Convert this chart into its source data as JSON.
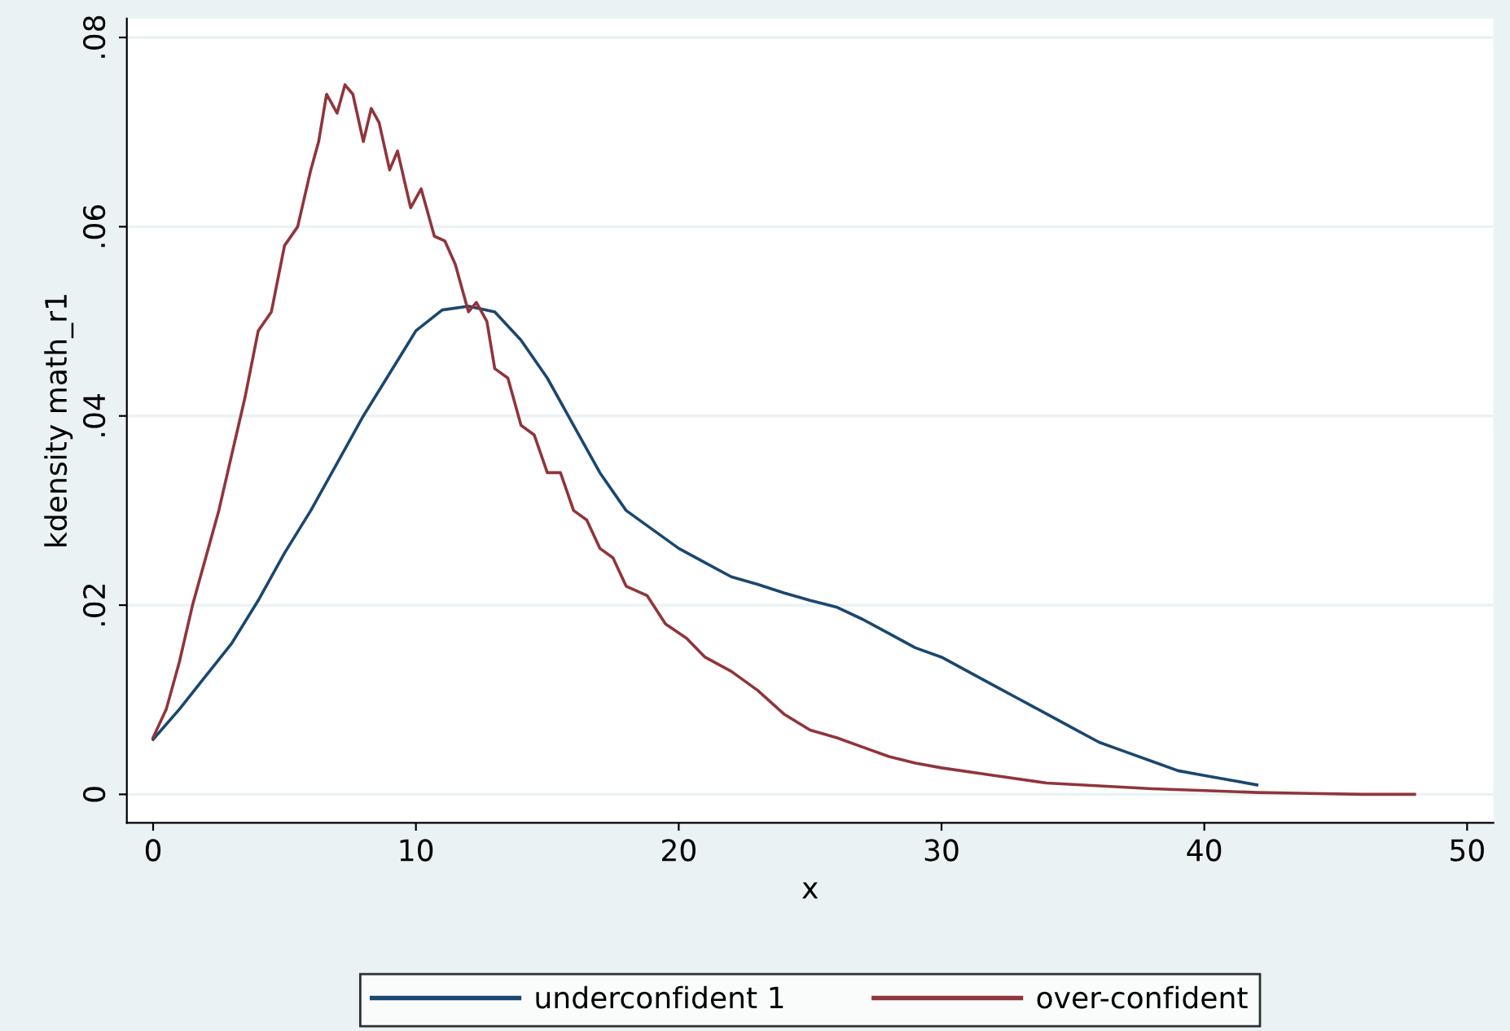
{
  "chart_data": {
    "type": "line",
    "xlabel": "x",
    "ylabel": "kdensity math_r1",
    "xlim": [
      -1,
      51
    ],
    "ylim": [
      -0.003,
      0.082
    ],
    "xticks": [
      0,
      10,
      20,
      30,
      40,
      50
    ],
    "yticks": [
      {
        "value": 0,
        "label": "0"
      },
      {
        "value": 0.02,
        "label": ".02"
      },
      {
        "value": 0.04,
        "label": ".04"
      },
      {
        "value": 0.06,
        "label": ".06"
      },
      {
        "value": 0.08,
        "label": ".08"
      }
    ],
    "grid": "y",
    "legend": "bottom",
    "line_style": "solid",
    "marker": "none",
    "series": [
      {
        "name": "underconfident 1",
        "color": "#1a476f",
        "x": [
          0,
          1,
          2,
          3,
          4,
          5,
          6,
          7,
          8,
          9,
          10,
          11,
          12,
          13,
          14,
          15,
          16,
          17,
          18,
          19,
          20,
          21,
          22,
          23,
          24,
          25,
          26,
          27,
          28,
          29,
          30,
          31,
          32,
          33,
          34,
          35,
          36,
          37,
          38,
          39,
          40,
          41,
          42
        ],
        "values": [
          0.0058,
          0.009,
          0.0125,
          0.016,
          0.0205,
          0.0255,
          0.03,
          0.035,
          0.04,
          0.0445,
          0.049,
          0.0512,
          0.0516,
          0.051,
          0.048,
          0.044,
          0.039,
          0.034,
          0.03,
          0.028,
          0.026,
          0.0245,
          0.023,
          0.0222,
          0.0213,
          0.0205,
          0.0198,
          0.0185,
          0.017,
          0.0155,
          0.0145,
          0.013,
          0.0115,
          0.01,
          0.0085,
          0.007,
          0.0055,
          0.0045,
          0.0035,
          0.0025,
          0.002,
          0.0015,
          0.001
        ]
      },
      {
        "name": "over-confident",
        "color": "#90353b",
        "x": [
          0,
          0.5,
          1,
          1.5,
          2,
          2.5,
          3,
          3.5,
          4,
          4.5,
          5,
          5.5,
          6,
          6.3,
          6.6,
          7,
          7.3,
          7.6,
          8,
          8.3,
          8.6,
          9,
          9.3,
          9.8,
          10.2,
          10.7,
          11.1,
          11.5,
          12,
          12.3,
          12.7,
          13,
          13.5,
          14,
          14.5,
          15,
          15.5,
          16,
          16.5,
          17,
          17.5,
          18,
          18.8,
          19.5,
          20.3,
          21,
          22,
          23,
          24,
          25,
          26,
          27,
          28,
          29,
          30,
          32,
          34,
          36,
          38,
          40,
          42,
          44,
          46,
          48
        ],
        "values": [
          0.006,
          0.009,
          0.014,
          0.02,
          0.025,
          0.03,
          0.036,
          0.042,
          0.049,
          0.051,
          0.058,
          0.06,
          0.066,
          0.069,
          0.074,
          0.072,
          0.075,
          0.074,
          0.069,
          0.0725,
          0.071,
          0.066,
          0.068,
          0.062,
          0.064,
          0.059,
          0.0585,
          0.056,
          0.051,
          0.052,
          0.05,
          0.045,
          0.044,
          0.039,
          0.038,
          0.034,
          0.034,
          0.03,
          0.029,
          0.026,
          0.025,
          0.022,
          0.021,
          0.018,
          0.0165,
          0.0145,
          0.013,
          0.011,
          0.0085,
          0.0068,
          0.006,
          0.005,
          0.004,
          0.0033,
          0.0028,
          0.002,
          0.0012,
          0.0009,
          0.0006,
          0.0004,
          0.0002,
          0.0001,
          0.0,
          0.0
        ]
      }
    ]
  }
}
